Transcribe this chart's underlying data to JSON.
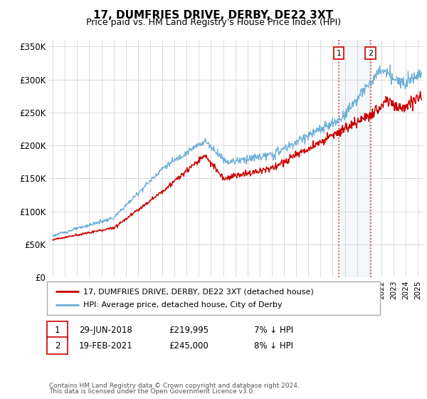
{
  "title": "17, DUMFRIES DRIVE, DERBY, DE22 3XT",
  "subtitle": "Price paid vs. HM Land Registry's House Price Index (HPI)",
  "hpi_label": "HPI: Average price, detached house, City of Derby",
  "property_label": "17, DUMFRIES DRIVE, DERBY, DE22 3XT (detached house)",
  "sale1_date": "29-JUN-2018",
  "sale1_price": 219995,
  "sale1_hpi": "7% ↓ HPI",
  "sale2_date": "19-FEB-2021",
  "sale2_price": 245000,
  "sale2_hpi": "8% ↓ HPI",
  "sale1_year": 2018.5,
  "sale2_year": 2021.12,
  "ylim": [
    0,
    360000
  ],
  "xlim_start": 1994.7,
  "xlim_end": 2025.4,
  "footnote1": "Contains HM Land Registry data © Crown copyright and database right 2024.",
  "footnote2": "This data is licensed under the Open Government Licence v3.0.",
  "hpi_color": "#6baed6",
  "property_color": "#cc0000",
  "dashed_line_color": "#cc0000",
  "bg_color": "#ffffff",
  "grid_color": "#cccccc",
  "highlight_color": "#dce6f1",
  "legend_border_color": "#aaaaaa",
  "box_border_color": "#cc0000"
}
